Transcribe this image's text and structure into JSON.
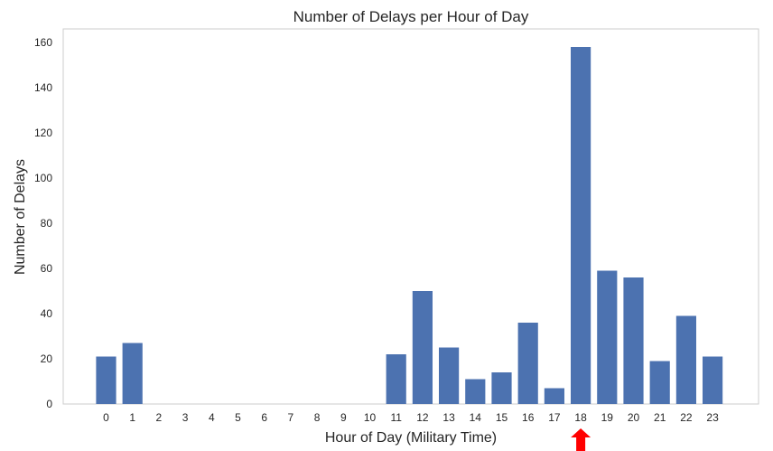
{
  "chart_data": {
    "type": "bar",
    "title": "Number of Delays per Hour of Day",
    "xlabel": "Hour of Day (Military Time)",
    "ylabel": "Number of Delays",
    "categories": [
      "0",
      "1",
      "2",
      "3",
      "4",
      "5",
      "6",
      "7",
      "8",
      "9",
      "10",
      "11",
      "12",
      "13",
      "14",
      "15",
      "16",
      "17",
      "18",
      "19",
      "20",
      "21",
      "22",
      "23"
    ],
    "values": [
      21,
      27,
      0,
      0,
      0,
      0,
      0,
      0,
      0,
      0,
      0,
      22,
      50,
      25,
      11,
      14,
      36,
      7,
      158,
      59,
      56,
      19,
      39,
      21
    ],
    "ylim": [
      0,
      166
    ],
    "yticks": [
      "0",
      "20",
      "40",
      "60",
      "80",
      "100",
      "120",
      "140",
      "160"
    ],
    "grid": false,
    "annotation": {
      "type": "arrow",
      "points_to_category": "18",
      "color": "#ff0000"
    },
    "colors": {
      "bar": "#4c72b0",
      "axes_edge": "#cccccc",
      "text": "#262626",
      "background": "#ffffff"
    }
  }
}
